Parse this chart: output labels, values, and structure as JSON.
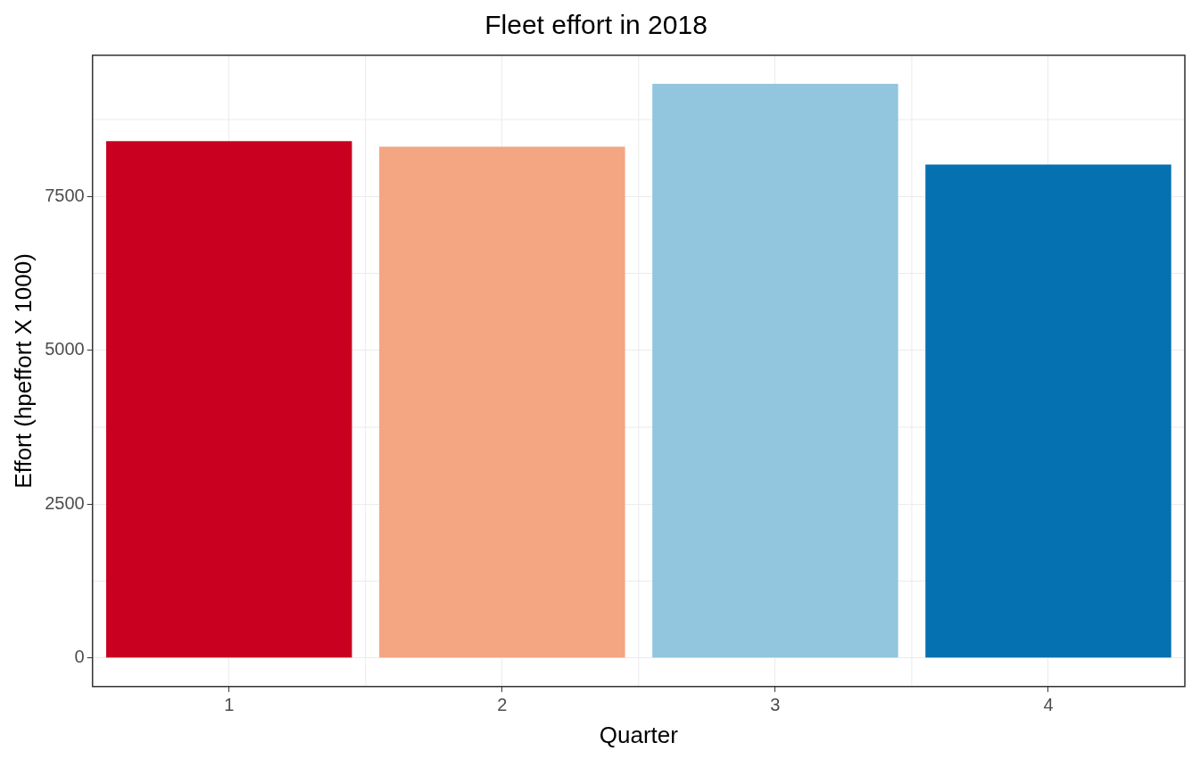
{
  "chart_data": {
    "type": "bar",
    "title": "Fleet effort in 2018",
    "xlabel": "Quarter",
    "ylabel": "Effort (hpeffort X 1000)",
    "categories": [
      "1",
      "2",
      "3",
      "4"
    ],
    "values": [
      8400,
      8310,
      9330,
      8020
    ],
    "colors": [
      "#ca0020",
      "#f4a582",
      "#92c5de",
      "#0571b0"
    ],
    "ylim": [
      -465,
      9795
    ],
    "yticks": [
      0,
      2500,
      5000,
      7500
    ],
    "grid": true,
    "legend": false
  }
}
